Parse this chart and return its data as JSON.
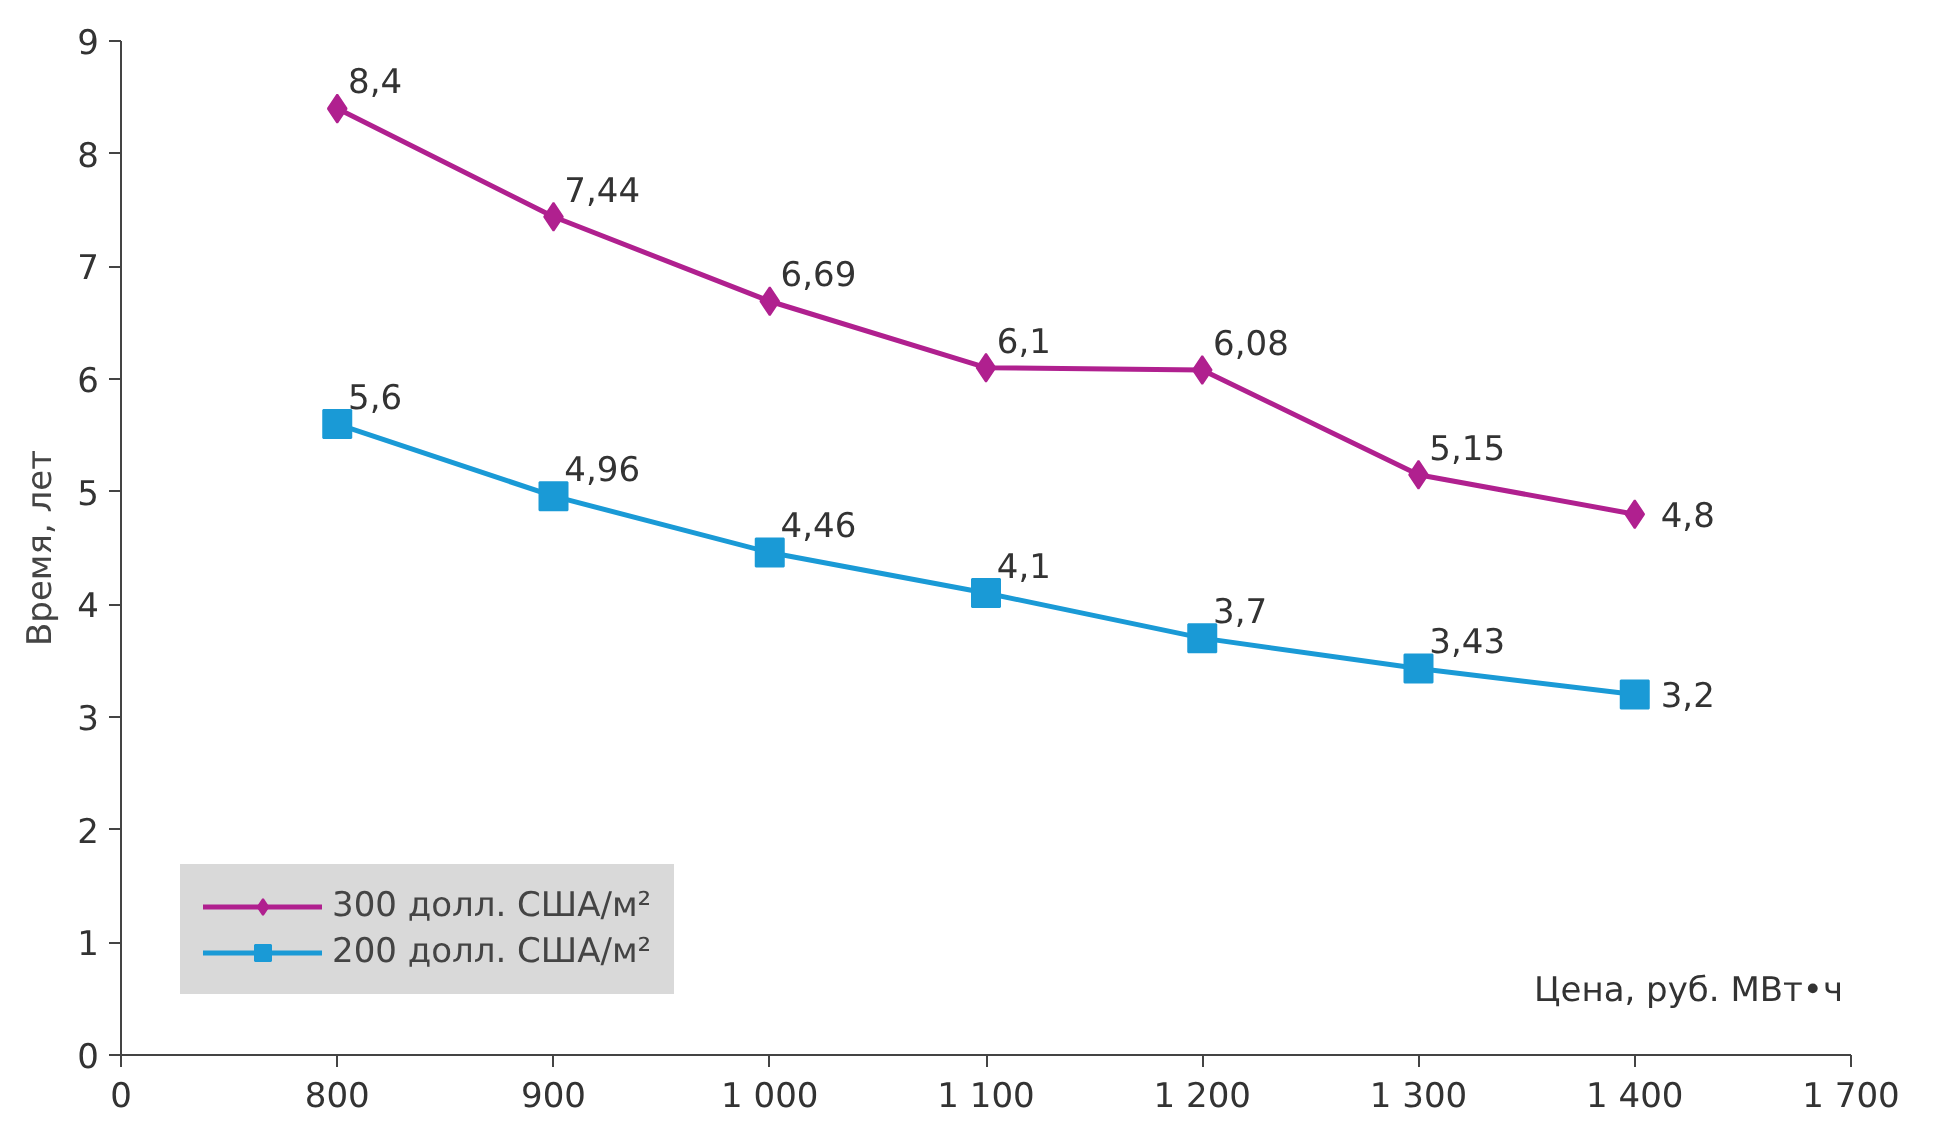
{
  "chart_data": {
    "type": "line",
    "xlabel": "Цена, руб. МВт•ч",
    "ylabel": "Время, лет",
    "categories": [
      "0",
      "800",
      "900",
      "1 000",
      "1 100",
      "1 200",
      "1 300",
      "1 400",
      "1 700"
    ],
    "ylim": [
      0,
      9
    ],
    "yticks": [
      0,
      1,
      2,
      3,
      4,
      5,
      6,
      7,
      8,
      9
    ],
    "grid": false,
    "legend": "bottom left",
    "series": [
      {
        "name": "300 долл. США/м²",
        "color": "#b0208f",
        "marker": "diamond",
        "values": [
          null,
          8.4,
          7.44,
          6.69,
          6.1,
          6.08,
          5.15,
          4.8,
          null
        ],
        "value_labels": [
          null,
          "8,4",
          "7,44",
          "6,69",
          "6,1",
          "6,08",
          "5,15",
          "4,8",
          null
        ]
      },
      {
        "name": "200 долл. США/м²",
        "color": "#1a9ad6",
        "marker": "square",
        "values": [
          null,
          5.6,
          4.96,
          4.46,
          4.1,
          3.7,
          3.43,
          3.2,
          null
        ],
        "value_labels": [
          null,
          "5,6",
          "4,96",
          "4,46",
          "4,1",
          "3,7",
          "3,43",
          "3,2",
          null
        ]
      }
    ]
  }
}
